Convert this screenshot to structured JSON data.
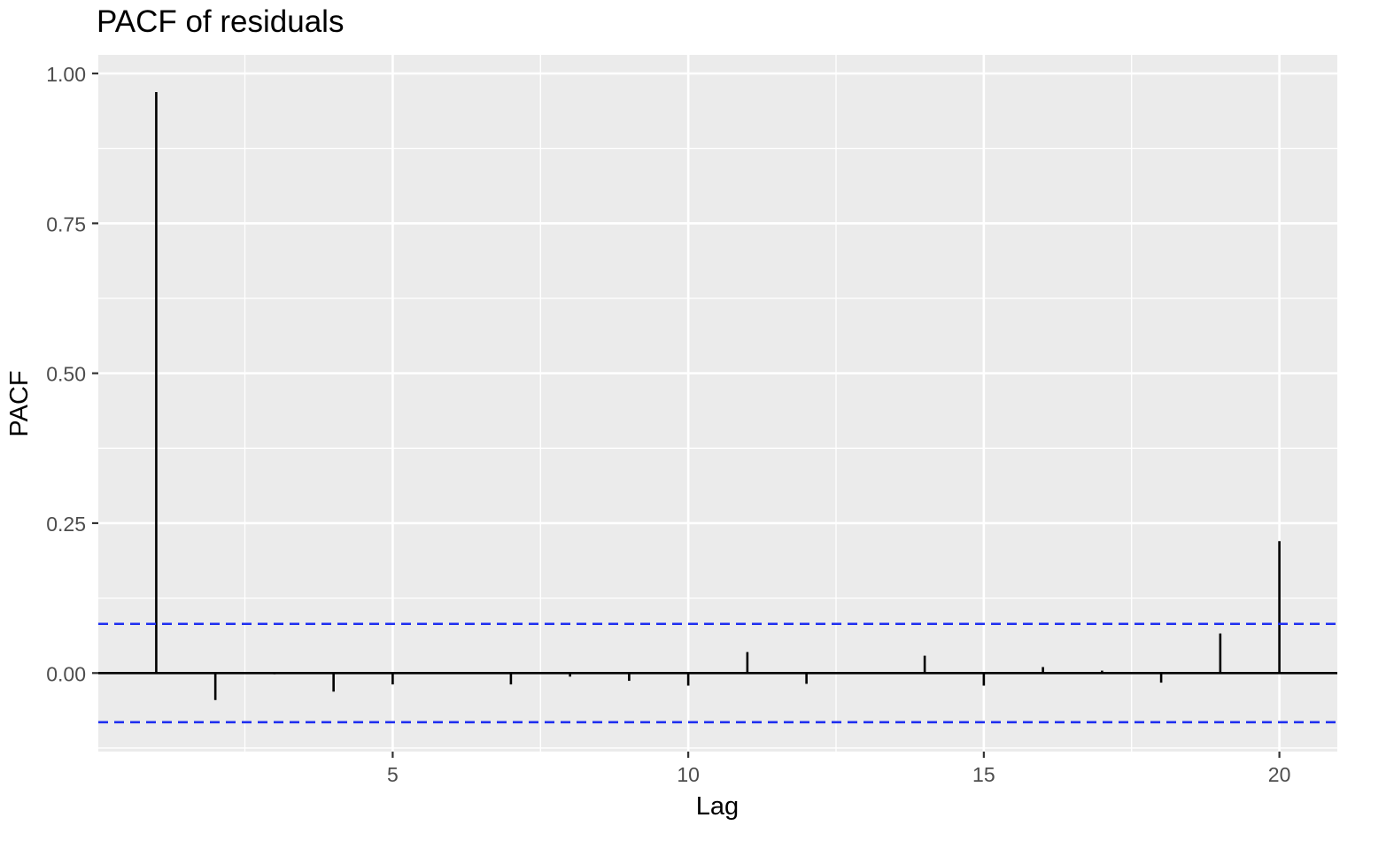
{
  "chart_data": {
    "type": "bar",
    "title": "PACF of residuals",
    "xlabel": "Lag",
    "ylabel": "PACF",
    "x": [
      1,
      2,
      3,
      4,
      5,
      6,
      7,
      8,
      9,
      10,
      11,
      12,
      13,
      14,
      15,
      16,
      17,
      18,
      19,
      20
    ],
    "values": [
      0.969,
      -0.045,
      -0.002,
      -0.031,
      -0.019,
      0.0,
      -0.019,
      -0.006,
      -0.013,
      -0.021,
      0.035,
      -0.018,
      0.0,
      0.029,
      -0.021,
      0.01,
      0.004,
      -0.016,
      0.066,
      0.22
    ],
    "confidence_limit": 0.082,
    "xlim": [
      0.02,
      20.98
    ],
    "ylim": [
      -0.131,
      1.031
    ],
    "x_ticks": [
      5,
      10,
      15,
      20
    ],
    "x_tick_labels": [
      "5",
      "10",
      "15",
      "20"
    ],
    "y_ticks": [
      0,
      0.25,
      0.5,
      0.75,
      1.0
    ],
    "y_tick_labels": [
      "0.00",
      "0.25",
      "0.50",
      "0.75",
      "1.00"
    ],
    "grid": true,
    "colors": {
      "panel_background": "#ebebeb",
      "grid": "#ffffff",
      "bars": "#000000",
      "confidence_lines": "#1f2ff0",
      "text": "#000000",
      "tick_text": "#4d4d4d"
    }
  }
}
